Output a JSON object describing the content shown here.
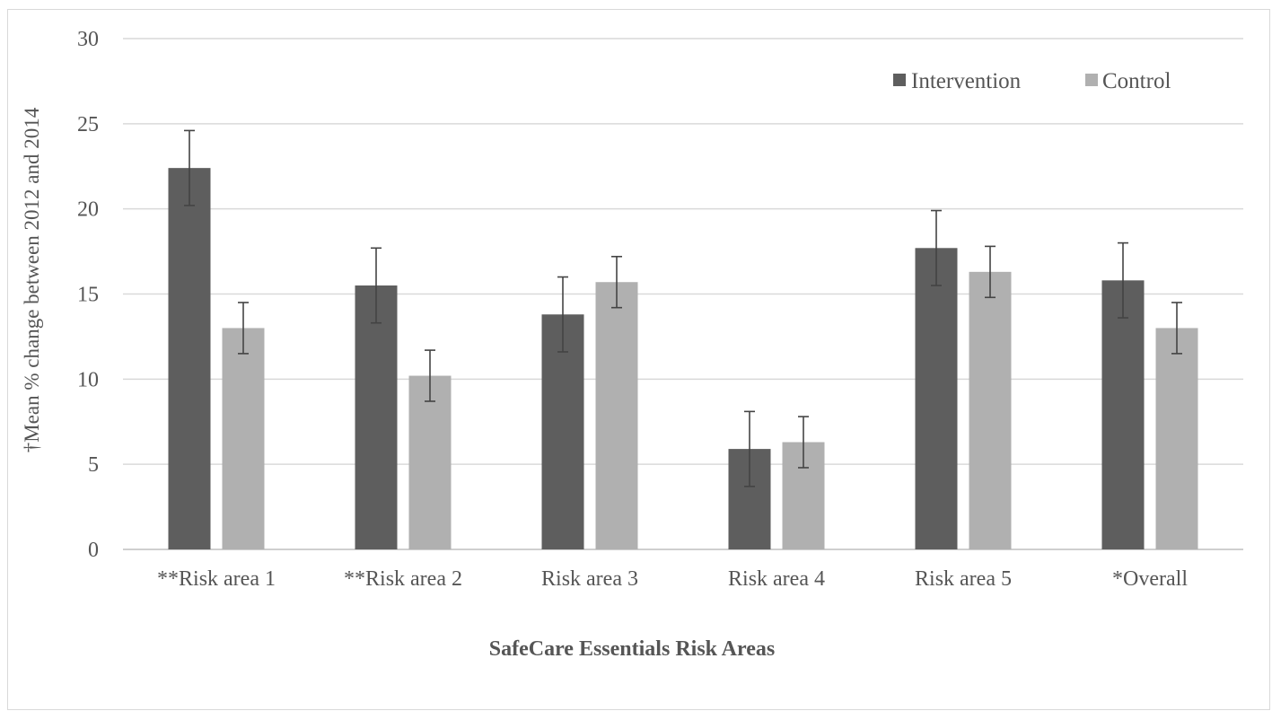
{
  "chart_data": {
    "type": "bar",
    "categories": [
      "**Risk area 1",
      "**Risk area 2",
      "Risk area 3",
      "Risk area 4",
      "Risk area 5",
      "*Overall"
    ],
    "series": [
      {
        "name": "Intervention",
        "color": "#5e5e5e",
        "values": [
          22.4,
          15.5,
          13.8,
          5.9,
          17.7,
          15.8
        ],
        "error": [
          2.2,
          2.2,
          2.2,
          2.2,
          2.2,
          2.2
        ]
      },
      {
        "name": "Control",
        "color": "#b0b0b0",
        "values": [
          13.0,
          10.2,
          15.7,
          6.3,
          16.3,
          13.0
        ],
        "error": [
          1.5,
          1.5,
          1.5,
          1.5,
          1.5,
          1.5
        ]
      }
    ],
    "xlabel": "SafeCare Essentials Risk Areas",
    "ylabel": "†Mean % change between 2012 and 2014",
    "ylim": [
      0,
      30
    ],
    "yticks": [
      0,
      5,
      10,
      15,
      20,
      25,
      30
    ],
    "grid": true,
    "legend_position": "top-right"
  }
}
